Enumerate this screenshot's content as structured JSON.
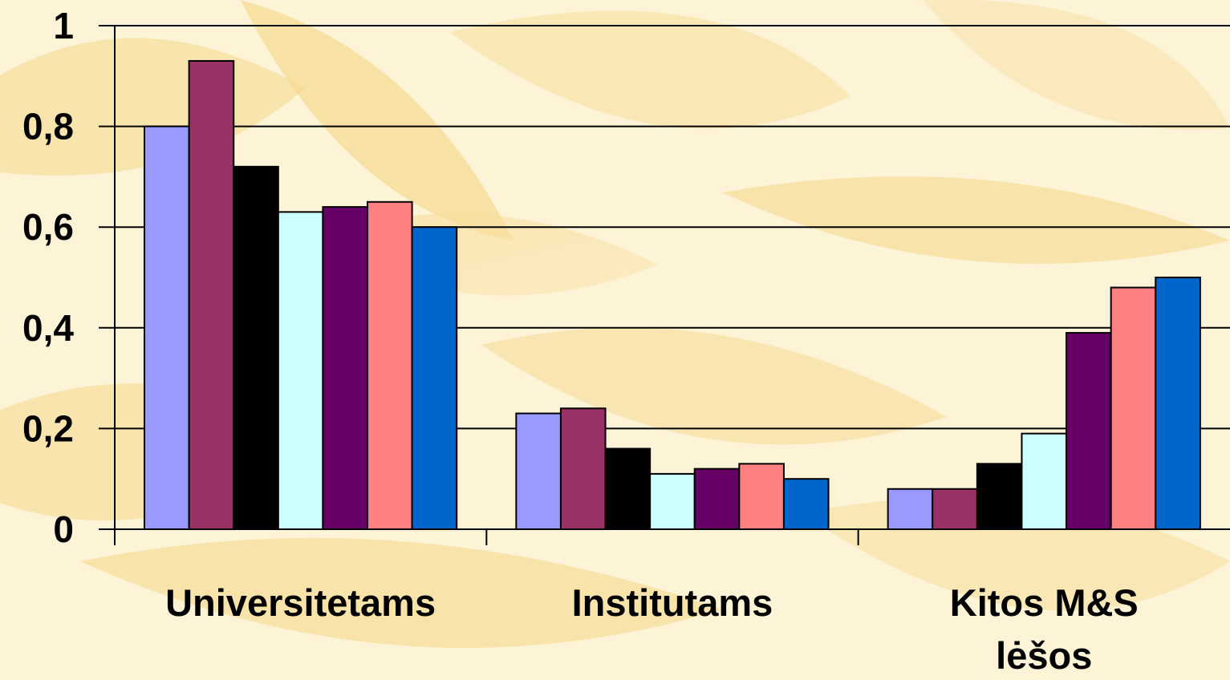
{
  "chart_data": {
    "type": "bar",
    "categories": [
      "Universitetams",
      "Institutams",
      "Kitos M&S lėšos"
    ],
    "category_lines": [
      [
        "Universitetams"
      ],
      [
        "Institutams"
      ],
      [
        "Kitos M&S",
        "lėšos"
      ]
    ],
    "series": [
      {
        "color": "#9999ff",
        "values": [
          0.8,
          0.23,
          0.08
        ]
      },
      {
        "color": "#993366",
        "values": [
          0.93,
          0.24,
          0.08
        ]
      },
      {
        "color": "#000000",
        "values": [
          0.72,
          0.16,
          0.13
        ]
      },
      {
        "color": "#ccffff",
        "values": [
          0.63,
          0.11,
          0.19
        ]
      },
      {
        "color": "#660066",
        "values": [
          0.64,
          0.12,
          0.39
        ]
      },
      {
        "color": "#ff8080",
        "values": [
          0.65,
          0.13,
          0.48
        ]
      },
      {
        "color": "#0066cc",
        "values": [
          0.6,
          0.1,
          0.5
        ]
      }
    ],
    "y_ticks": [
      "0",
      "0,2",
      "0,4",
      "0,6",
      "0,8",
      "1"
    ],
    "ylim": [
      0,
      1
    ],
    "grid": true,
    "legend": "none",
    "title": "",
    "xlabel": "",
    "ylabel": ""
  }
}
